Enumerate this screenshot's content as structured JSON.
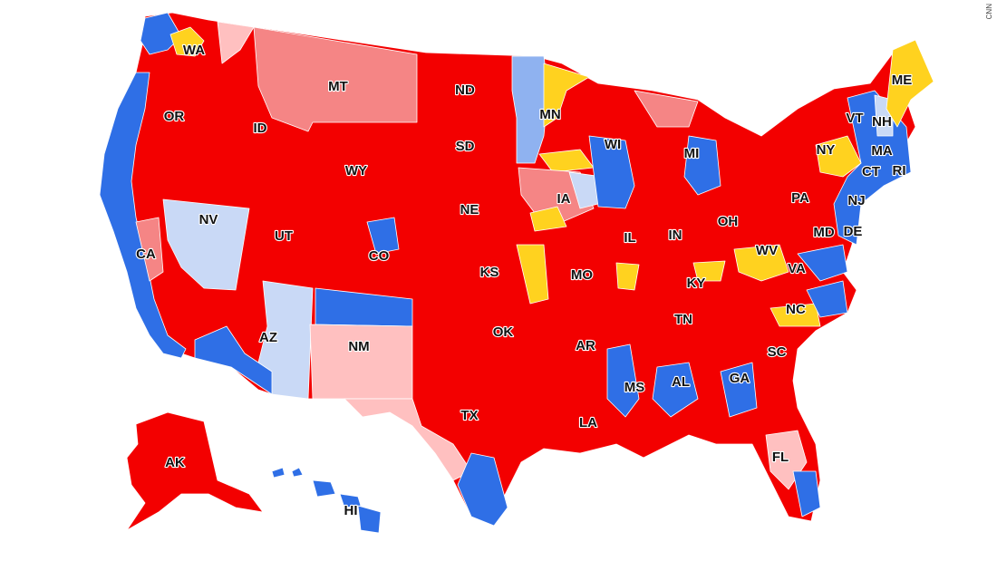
{
  "watermark": "CNN",
  "colors": {
    "solid_d": "#2f6fe6",
    "lean_d": "#8fb2f0",
    "tilt_d": "#c9d9f6",
    "toss_up": "#ffd21f",
    "tilt_r": "#ffc0c0",
    "lean_r": "#f58585",
    "solid_r": "#f30000"
  },
  "states": [
    {
      "id": "WA",
      "label": "WA"
    },
    {
      "id": "OR",
      "label": "OR"
    },
    {
      "id": "ID",
      "label": "ID"
    },
    {
      "id": "MT",
      "label": "MT"
    },
    {
      "id": "ND",
      "label": "ND"
    },
    {
      "id": "MN",
      "label": "MN"
    },
    {
      "id": "SD",
      "label": "SD"
    },
    {
      "id": "WY",
      "label": "WY"
    },
    {
      "id": "WI",
      "label": "WI"
    },
    {
      "id": "MI",
      "label": "MI"
    },
    {
      "id": "NY",
      "label": "NY"
    },
    {
      "id": "VT",
      "label": "VT"
    },
    {
      "id": "NH",
      "label": "NH"
    },
    {
      "id": "ME",
      "label": "ME"
    },
    {
      "id": "MA",
      "label": "MA"
    },
    {
      "id": "CT",
      "label": "CT"
    },
    {
      "id": "RI",
      "label": "RI"
    },
    {
      "id": "NJ",
      "label": "NJ"
    },
    {
      "id": "PA",
      "label": "PA"
    },
    {
      "id": "IA",
      "label": "IA"
    },
    {
      "id": "NE",
      "label": "NE"
    },
    {
      "id": "NV",
      "label": "NV"
    },
    {
      "id": "UT",
      "label": "UT"
    },
    {
      "id": "CO",
      "label": "CO"
    },
    {
      "id": "CA",
      "label": "CA"
    },
    {
      "id": "IL",
      "label": "IL"
    },
    {
      "id": "IN",
      "label": "IN"
    },
    {
      "id": "OH",
      "label": "OH"
    },
    {
      "id": "MD",
      "label": "MD"
    },
    {
      "id": "DE",
      "label": "DE"
    },
    {
      "id": "WV",
      "label": "WV"
    },
    {
      "id": "VA",
      "label": "VA"
    },
    {
      "id": "KS",
      "label": "KS"
    },
    {
      "id": "MO",
      "label": "MO"
    },
    {
      "id": "KY",
      "label": "KY"
    },
    {
      "id": "TN",
      "label": "TN"
    },
    {
      "id": "NC",
      "label": "NC"
    },
    {
      "id": "AZ",
      "label": "AZ"
    },
    {
      "id": "NM",
      "label": "NM"
    },
    {
      "id": "OK",
      "label": "OK"
    },
    {
      "id": "AR",
      "label": "AR"
    },
    {
      "id": "SC",
      "label": "SC"
    },
    {
      "id": "GA",
      "label": "GA"
    },
    {
      "id": "AL",
      "label": "AL"
    },
    {
      "id": "MS",
      "label": "MS"
    },
    {
      "id": "TX",
      "label": "TX"
    },
    {
      "id": "LA",
      "label": "LA"
    },
    {
      "id": "FL",
      "label": "FL"
    },
    {
      "id": "AK",
      "label": "AK"
    },
    {
      "id": "HI",
      "label": "HI"
    }
  ]
}
